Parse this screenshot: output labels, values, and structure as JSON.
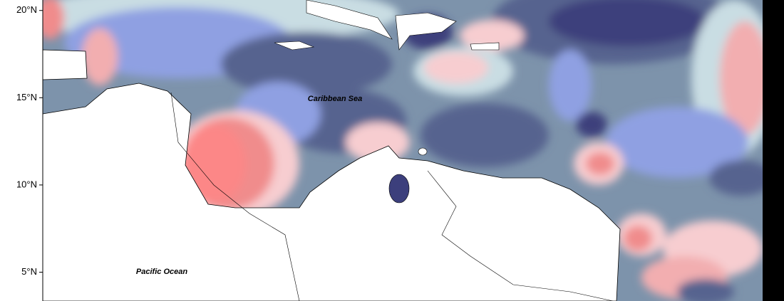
{
  "map": {
    "ylim": [
      3.35,
      20.6
    ],
    "yticks": [
      {
        "value": 20,
        "label": "20°N"
      },
      {
        "value": 15,
        "label": "15°N"
      },
      {
        "value": 10,
        "label": "10°N"
      },
      {
        "value": 5,
        "label": "5°N"
      }
    ],
    "labels": [
      "Caribbean Sea",
      "Pacific Ocean"
    ]
  }
}
